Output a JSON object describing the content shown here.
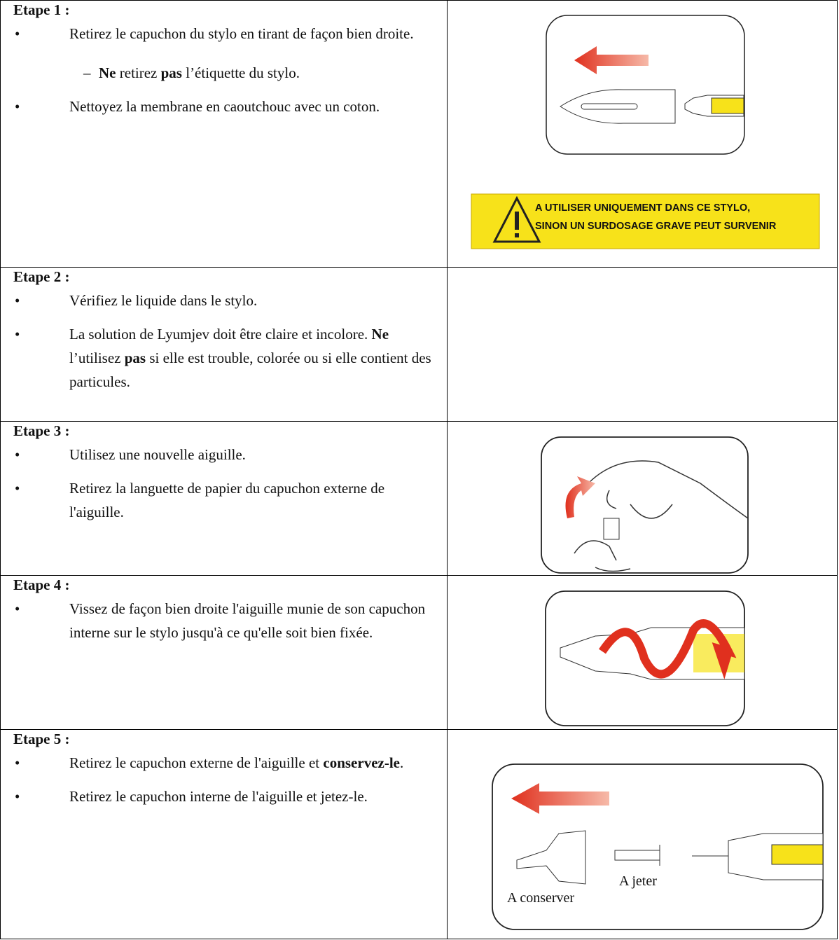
{
  "steps": [
    {
      "heading": "Etape 1 :",
      "items": [
        {
          "parts": [
            "Retirez le capuchon du stylo en tirant de façon bien droite."
          ],
          "sub": [
            [
              {
                "bold": "Ne"
              },
              " retirez ",
              {
                "bold": "pas"
              },
              " l’étiquette du stylo."
            ]
          ]
        },
        {
          "parts": [
            "Nettoyez la membrane en caoutchouc avec un coton."
          ]
        }
      ]
    },
    {
      "heading": "Etape 2 :",
      "items": [
        {
          "parts": [
            "Vérifiez le liquide dans le stylo."
          ]
        },
        {
          "parts": [
            "La solution de Lyumjev doit être claire et incolore. ",
            {
              "bold": "Ne"
            },
            " l’utilisez ",
            {
              "bold": "pas"
            },
            " si elle est trouble, colorée ou si elle contient des particules."
          ]
        }
      ]
    },
    {
      "heading": "Etape 3 :",
      "items": [
        {
          "parts": [
            "Utilisez une nouvelle aiguille."
          ]
        },
        {
          "parts": [
            "Retirez la languette de papier du capuchon externe de l'aiguille."
          ]
        }
      ]
    },
    {
      "heading": "Etape 4 :",
      "items": [
        {
          "parts": [
            "Vissez de façon bien droite l'aiguille munie de son capuchon interne sur le stylo jusqu'à ce qu'elle soit bien fixée."
          ]
        }
      ]
    },
    {
      "heading": "Etape 5 :",
      "items": [
        {
          "parts": [
            "Retirez le capuchon externe de l'aiguille et ",
            {
              "bold": "conservez-le"
            },
            "."
          ]
        },
        {
          "parts": [
            "Retirez le capuchon interne de l'aiguille et jetez-le."
          ]
        }
      ]
    }
  ],
  "figures": {
    "warning_label": [
      "A UTILISER UNIQUEMENT DANS CE STYLO,",
      "SINON UN SURDOSAGE GRAVE PEUT SURVENIR"
    ],
    "step5_labels": {
      "discard": "A jeter",
      "keep": "A conserver"
    }
  }
}
